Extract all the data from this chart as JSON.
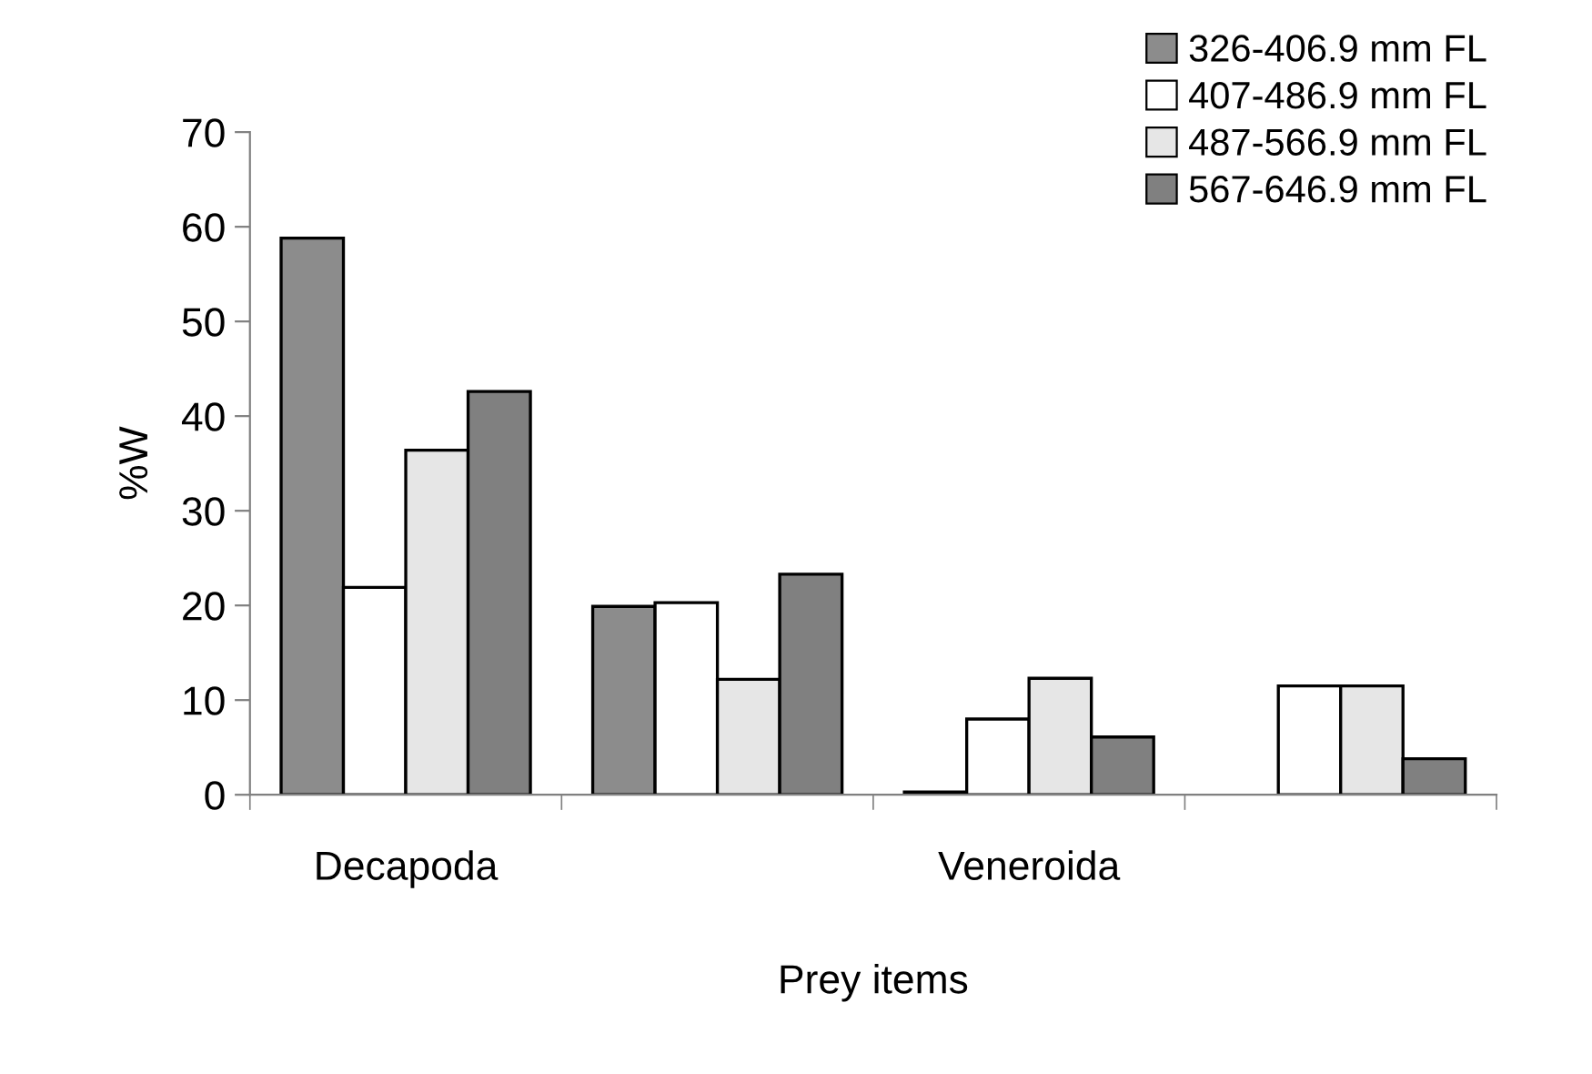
{
  "chart_data": {
    "type": "bar",
    "xlabel": "Prey items",
    "ylabel": "%W",
    "categories": [
      "Decapoda",
      null,
      "Veneroida",
      null
    ],
    "series": [
      {
        "name": "326-406.9 mm FL",
        "color": "#8c8c8c",
        "values": [
          58.8,
          19.9,
          0.3,
          null
        ]
      },
      {
        "name": "407-486.9 mm FL",
        "color": "#ffffff",
        "values": [
          21.9,
          20.3,
          8.0,
          11.5
        ]
      },
      {
        "name": "487-566.9 mm FL",
        "color": "#e6e6e6",
        "values": [
          36.4,
          12.2,
          12.3,
          11.5
        ]
      },
      {
        "name": "567-646.9 mm FL",
        "color": "#808080",
        "values": [
          42.6,
          23.3,
          6.1,
          3.8
        ]
      }
    ],
    "ylim": [
      0,
      70
    ],
    "yticks": [
      0,
      10,
      20,
      30,
      40,
      50,
      60,
      70
    ],
    "grid": false,
    "legend": "top right"
  }
}
